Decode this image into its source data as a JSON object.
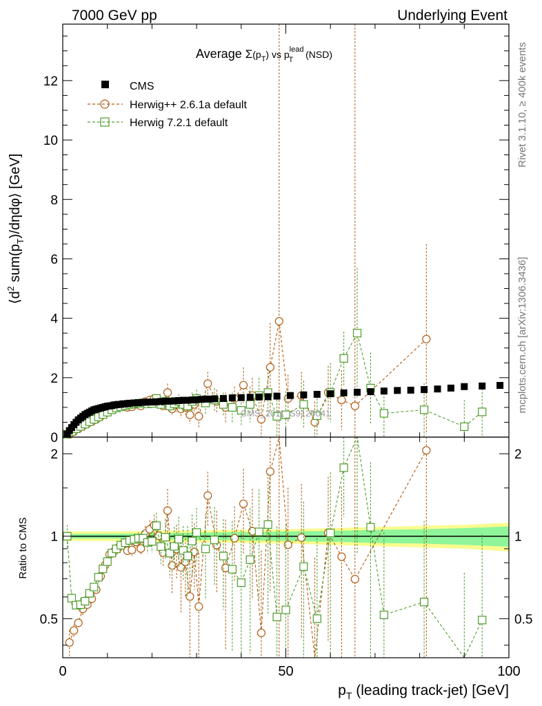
{
  "header": {
    "left": "7000 GeV pp",
    "right": "Underlying Event"
  },
  "side_labels": {
    "rivet": "Rivet 3.1.10, ≥ 400k events",
    "mcplots": "mcplots.cern.ch [arXiv:1306.3436]"
  },
  "watermark": "CMS_2011_S9120041",
  "chart_data": [
    {
      "type": "scatter",
      "panel": "main",
      "title": "Average Σ(pT) vs pT^lead (NSD)",
      "title_parts": {
        "pre": "Average ",
        "sigma": "Σ",
        "p": "(p",
        "sub": "T",
        "close": ")",
        "vs": " vs p",
        "sup": "lead",
        "sub2": "T",
        "post": " (NSD)"
      },
      "ylabel": "⟨d² sum(pT)/dηdφ⟩ [GeV]",
      "ylabel_parts": {
        "a": "⟨d",
        "sup": "2",
        "b": " sum(p",
        "sub": "T",
        "c": ")/dηdφ⟩ [GeV]"
      },
      "xlim": [
        0,
        100
      ],
      "ylim": [
        0,
        13.9
      ],
      "yticks": [
        0,
        2,
        4,
        6,
        8,
        10,
        12
      ],
      "ytick_labels": [
        "0",
        "2",
        "4",
        "6",
        "8",
        "10",
        "12"
      ],
      "legend_position": "top-left",
      "series": [
        {
          "name": "CMS",
          "color": "#000000",
          "marker": "filled-square",
          "x": [
            1.0,
            1.5,
            2.0,
            2.5,
            3.0,
            3.5,
            4.0,
            4.5,
            5.0,
            5.5,
            6.0,
            6.5,
            7.0,
            7.5,
            8.0,
            8.5,
            9.0,
            9.5,
            10.0,
            10.5,
            11.0,
            11.5,
            12.0,
            12.5,
            13.0,
            13.5,
            14.0,
            14.5,
            15.0,
            16.0,
            17.0,
            18.0,
            19.0,
            20.0,
            21.0,
            22.0,
            23.0,
            24.0,
            25.0,
            26.0,
            27.0,
            28.0,
            29.0,
            30.0,
            31.0,
            32.0,
            33.0,
            34.0,
            36.0,
            38.0,
            40.0,
            42.0,
            44.0,
            46.0,
            48.0,
            51.0,
            54.0,
            57.0,
            60.0,
            63.0,
            66.0,
            69.0,
            72.0,
            75.0,
            78.0,
            81.0,
            84.0,
            87.0,
            90.0,
            94.0,
            98.0
          ],
          "y": [
            0.1,
            0.22,
            0.32,
            0.42,
            0.5,
            0.58,
            0.64,
            0.7,
            0.76,
            0.8,
            0.84,
            0.88,
            0.92,
            0.94,
            0.96,
            0.98,
            1.0,
            1.02,
            1.04,
            1.05,
            1.06,
            1.08,
            1.09,
            1.1,
            1.1,
            1.12,
            1.12,
            1.13,
            1.14,
            1.15,
            1.16,
            1.17,
            1.18,
            1.18,
            1.19,
            1.2,
            1.21,
            1.21,
            1.22,
            1.23,
            1.24,
            1.24,
            1.25,
            1.26,
            1.27,
            1.28,
            1.28,
            1.29,
            1.3,
            1.32,
            1.33,
            1.34,
            1.35,
            1.36,
            1.38,
            1.4,
            1.42,
            1.44,
            1.46,
            1.49,
            1.51,
            1.53,
            1.55,
            1.57,
            1.58,
            1.6,
            1.62,
            1.65,
            1.7,
            1.72,
            1.74
          ]
        },
        {
          "name": "Herwig++ 2.6.1a default",
          "color": "#b05a10",
          "marker": "open-circle",
          "x": [
            1.5,
            2.5,
            3.5,
            4.5,
            5.5,
            6.5,
            7.5,
            8.5,
            9.5,
            10.5,
            11.5,
            12.5,
            13.5,
            14.5,
            15.5,
            16.5,
            17.5,
            18.5,
            19.5,
            20.5,
            21.5,
            22.5,
            23.5,
            24.5,
            25.5,
            26.5,
            27.5,
            28.5,
            29.5,
            30.5,
            32.5,
            34.5,
            36.5,
            38.5,
            40.5,
            42.5,
            44.5,
            46.5,
            48.5,
            50.5,
            53.5,
            56.5,
            59.5,
            62.5,
            65.5,
            81.5
          ],
          "y": [
            0.09,
            0.19,
            0.28,
            0.38,
            0.45,
            0.52,
            0.6,
            0.7,
            0.8,
            0.9,
            0.95,
            1.0,
            1.05,
            1.0,
            1.02,
            1.1,
            1.05,
            1.2,
            1.25,
            1.3,
            1.2,
            1.05,
            1.5,
            0.95,
            1.1,
            0.95,
            1.0,
            0.75,
            1.1,
            0.7,
            1.8,
            1.2,
            1.0,
            1.3,
            1.75,
            1.4,
            0.6,
            2.35,
            3.9,
            1.3,
            1.4,
            0.5,
            1.5,
            1.25,
            1.05,
            3.3
          ],
          "yerr": [
            0.01,
            0.01,
            0.01,
            0.02,
            0.02,
            0.02,
            0.02,
            0.02,
            0.03,
            0.03,
            0.03,
            0.03,
            0.04,
            0.04,
            0.05,
            0.05,
            0.06,
            0.08,
            0.1,
            0.12,
            0.15,
            0.12,
            0.3,
            0.2,
            0.25,
            0.3,
            0.25,
            0.3,
            0.3,
            0.4,
            0.4,
            0.4,
            0.5,
            0.4,
            0.6,
            0.6,
            0.6,
            1.5,
            13.5,
            0.8,
            0.8,
            0.7,
            0.9,
            1.0,
            13.5,
            3.2
          ]
        },
        {
          "name": "Herwig 7.2.1 default",
          "color": "#4c9a2a",
          "marker": "open-square",
          "x": [
            1.0,
            2.0,
            3.0,
            4.0,
            5.0,
            6.0,
            7.0,
            8.0,
            9.0,
            10.0,
            11.0,
            12.0,
            13.0,
            14.0,
            15.0,
            16.0,
            17.0,
            18.0,
            19.0,
            20.0,
            21.0,
            22.0,
            23.0,
            24.0,
            25.0,
            26.0,
            27.0,
            28.0,
            29.0,
            30.0,
            32.0,
            34.0,
            36.0,
            38.0,
            40.0,
            42.0,
            44.0,
            46.0,
            48.0,
            50.0,
            54.0,
            57.0,
            60.0,
            63.0,
            66.0,
            69.0,
            72.0,
            81.0,
            90.0,
            94.0
          ],
          "y": [
            0.1,
            0.19,
            0.28,
            0.36,
            0.44,
            0.52,
            0.6,
            0.68,
            0.76,
            0.84,
            0.92,
            0.98,
            1.02,
            1.06,
            1.1,
            1.12,
            1.14,
            1.15,
            1.12,
            1.13,
            1.3,
            1.1,
            1.2,
            1.05,
            1.12,
            1.2,
            1.1,
            1.05,
            1.2,
            1.3,
            1.15,
            1.25,
            1.1,
            1.0,
            0.9,
            1.1,
            1.4,
            1.5,
            0.7,
            0.75,
            1.1,
            0.72,
            1.5,
            2.65,
            3.5,
            1.65,
            0.8,
            0.92,
            0.35,
            0.85
          ],
          "yerr": [
            0.01,
            0.01,
            0.01,
            0.02,
            0.02,
            0.02,
            0.02,
            0.02,
            0.03,
            0.03,
            0.03,
            0.03,
            0.04,
            0.04,
            0.05,
            0.05,
            0.06,
            0.08,
            0.1,
            0.1,
            0.15,
            0.15,
            0.2,
            0.2,
            0.2,
            0.25,
            0.25,
            0.3,
            0.3,
            0.3,
            0.4,
            0.4,
            0.4,
            0.5,
            0.5,
            0.6,
            0.6,
            0.8,
            0.8,
            0.8,
            0.8,
            0.7,
            1.0,
            0.9,
            2.2,
            1.2,
            0.8,
            0.9,
            0.9,
            0.9
          ]
        }
      ]
    },
    {
      "type": "scatter",
      "panel": "ratio",
      "ylabel": "Ratio to CMS",
      "xlabel": "pT (leading track-jet) [GeV]",
      "xlabel_parts": {
        "p": "p",
        "sub": "T",
        "rest": " (leading track-jet) [GeV]"
      },
      "xlim": [
        0,
        100
      ],
      "ylim": [
        0.36,
        2.3
      ],
      "yscale": "log",
      "yticks": [
        0.5,
        1,
        2
      ],
      "ytick_labels": [
        "0.5",
        "1",
        "2"
      ],
      "xticks": [
        0,
        50,
        100
      ],
      "xtick_labels": [
        "0",
        "50",
        "100"
      ],
      "band_inner_color": "#8ff59a",
      "band_outer_color": "#fbfb8e",
      "band": {
        "x": [
          0,
          10,
          20,
          30,
          40,
          50,
          60,
          70,
          80,
          90,
          100
        ],
        "inner": [
          0.02,
          0.02,
          0.025,
          0.03,
          0.035,
          0.04,
          0.045,
          0.055,
          0.06,
          0.07,
          0.085
        ],
        "outer": [
          0.04,
          0.04,
          0.045,
          0.05,
          0.055,
          0.06,
          0.07,
          0.08,
          0.09,
          0.1,
          0.12
        ]
      }
    }
  ]
}
